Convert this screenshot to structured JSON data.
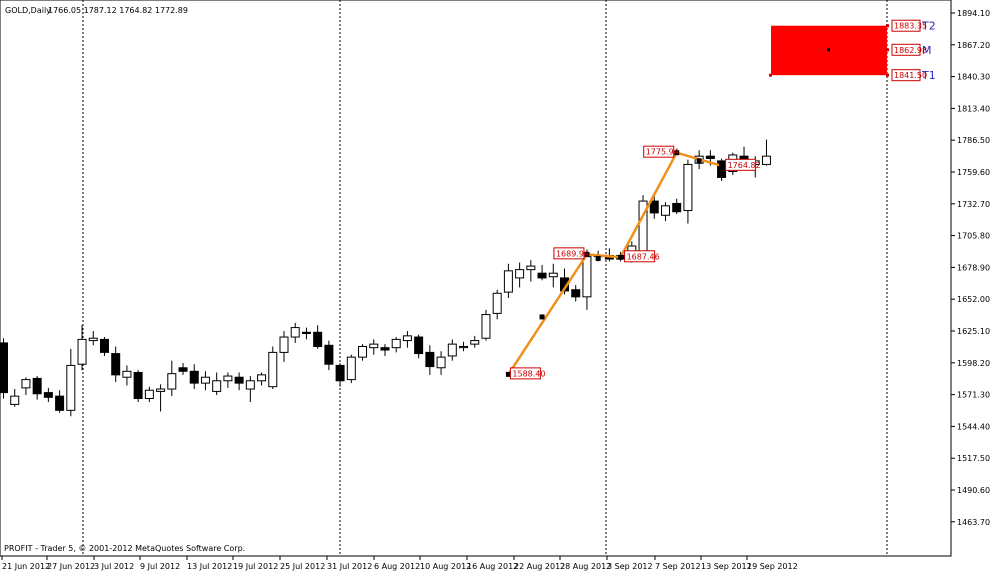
{
  "header": {
    "symbol": "GOLD,Daily",
    "ohlc": "1766.05 1787.12 1764.82 1772.89"
  },
  "footer": {
    "copyright": "PROFIT - Trader 5, © 2001-2012 MetaQuotes Software Corp."
  },
  "chart_data": {
    "type": "candlestick",
    "title": "",
    "ylim": [
      1436.78,
      1900.0
    ],
    "y_ticks": [
      1894.1,
      1867.2,
      1840.3,
      1813.4,
      1786.5,
      1759.6,
      1732.7,
      1705.8,
      1678.9,
      1652.0,
      1625.1,
      1598.2,
      1571.3,
      1544.4,
      1517.5,
      1490.6,
      1463.7
    ],
    "x_labels": [
      "21 Jun 2012",
      "27 Jun 2012",
      "3 Jul 2012",
      "9 Jul 2012",
      "13 Jul 2012",
      "19 Jul 2012",
      "25 Jul 2012",
      "31 Jul 2012",
      "6 Aug 2012",
      "10 Aug 2012",
      "16 Aug 2012",
      "22 Aug 2012",
      "28 Aug 2012",
      "3 Sep 2012",
      "7 Sep 2012",
      "13 Sep 2012",
      "19 Sep 2012"
    ],
    "candles": [
      {
        "o": 1615,
        "h": 1619,
        "l": 1568,
        "c": 1573
      },
      {
        "o": 1563,
        "h": 1576,
        "l": 1561,
        "c": 1570
      },
      {
        "o": 1577,
        "h": 1586,
        "l": 1571,
        "c": 1584
      },
      {
        "o": 1585,
        "h": 1587,
        "l": 1567,
        "c": 1572
      },
      {
        "o": 1573,
        "h": 1577,
        "l": 1565,
        "c": 1569
      },
      {
        "o": 1570,
        "h": 1575,
        "l": 1556,
        "c": 1558
      },
      {
        "o": 1558,
        "h": 1610,
        "l": 1553,
        "c": 1596
      },
      {
        "o": 1597,
        "h": 1630,
        "l": 1592,
        "c": 1618
      },
      {
        "o": 1617,
        "h": 1625,
        "l": 1613,
        "c": 1619
      },
      {
        "o": 1618,
        "h": 1620,
        "l": 1604,
        "c": 1607
      },
      {
        "o": 1606,
        "h": 1612,
        "l": 1582,
        "c": 1588
      },
      {
        "o": 1586,
        "h": 1596,
        "l": 1579,
        "c": 1591
      },
      {
        "o": 1590,
        "h": 1592,
        "l": 1565,
        "c": 1568
      },
      {
        "o": 1568,
        "h": 1578,
        "l": 1565,
        "c": 1575
      },
      {
        "o": 1574,
        "h": 1580,
        "l": 1557,
        "c": 1576
      },
      {
        "o": 1576,
        "h": 1600,
        "l": 1570,
        "c": 1589
      },
      {
        "o": 1594,
        "h": 1598,
        "l": 1588,
        "c": 1591
      },
      {
        "o": 1591,
        "h": 1597,
        "l": 1576,
        "c": 1581
      },
      {
        "o": 1581,
        "h": 1591,
        "l": 1575,
        "c": 1586
      },
      {
        "o": 1574,
        "h": 1590,
        "l": 1571,
        "c": 1583
      },
      {
        "o": 1583,
        "h": 1590,
        "l": 1577,
        "c": 1587
      },
      {
        "o": 1586,
        "h": 1590,
        "l": 1575,
        "c": 1581
      },
      {
        "o": 1576,
        "h": 1587,
        "l": 1565,
        "c": 1583
      },
      {
        "o": 1583,
        "h": 1590,
        "l": 1579,
        "c": 1588
      },
      {
        "o": 1578,
        "h": 1612,
        "l": 1576,
        "c": 1607
      },
      {
        "o": 1607,
        "h": 1625,
        "l": 1599,
        "c": 1620
      },
      {
        "o": 1620,
        "h": 1632,
        "l": 1615,
        "c": 1628
      },
      {
        "o": 1624,
        "h": 1628,
        "l": 1618,
        "c": 1623
      },
      {
        "o": 1624,
        "h": 1630,
        "l": 1610,
        "c": 1612
      },
      {
        "o": 1613,
        "h": 1617,
        "l": 1592,
        "c": 1597
      },
      {
        "o": 1596,
        "h": 1598,
        "l": 1578,
        "c": 1583
      },
      {
        "o": 1584,
        "h": 1605,
        "l": 1581,
        "c": 1603
      },
      {
        "o": 1603,
        "h": 1614,
        "l": 1600,
        "c": 1612
      },
      {
        "o": 1611,
        "h": 1618,
        "l": 1605,
        "c": 1614
      },
      {
        "o": 1611,
        "h": 1614,
        "l": 1604,
        "c": 1609
      },
      {
        "o": 1611,
        "h": 1620,
        "l": 1607,
        "c": 1618
      },
      {
        "o": 1617,
        "h": 1625,
        "l": 1611,
        "c": 1621
      },
      {
        "o": 1620,
        "h": 1622,
        "l": 1602,
        "c": 1606
      },
      {
        "o": 1607,
        "h": 1613,
        "l": 1588,
        "c": 1595
      },
      {
        "o": 1594,
        "h": 1608,
        "l": 1588,
        "c": 1603
      },
      {
        "o": 1604,
        "h": 1618,
        "l": 1600,
        "c": 1614
      },
      {
        "o": 1611,
        "h": 1616,
        "l": 1608,
        "c": 1612
      },
      {
        "o": 1614,
        "h": 1621,
        "l": 1611,
        "c": 1617
      },
      {
        "o": 1619,
        "h": 1643,
        "l": 1617,
        "c": 1639
      },
      {
        "o": 1640,
        "h": 1660,
        "l": 1635,
        "c": 1657
      },
      {
        "o": 1658,
        "h": 1682,
        "l": 1653,
        "c": 1676
      },
      {
        "o": 1670,
        "h": 1683,
        "l": 1662,
        "c": 1677
      },
      {
        "o": 1677,
        "h": 1685,
        "l": 1667,
        "c": 1680
      },
      {
        "o": 1674,
        "h": 1681,
        "l": 1668,
        "c": 1670
      },
      {
        "o": 1671,
        "h": 1682,
        "l": 1662,
        "c": 1674
      },
      {
        "o": 1670,
        "h": 1678,
        "l": 1656,
        "c": 1659
      },
      {
        "o": 1660,
        "h": 1664,
        "l": 1650,
        "c": 1654
      },
      {
        "o": 1654,
        "h": 1694,
        "l": 1643,
        "c": 1688
      },
      {
        "o": 1688,
        "h": 1693,
        "l": 1684,
        "c": 1689
      },
      {
        "o": 1689,
        "h": 1695,
        "l": 1684,
        "c": 1686
      },
      {
        "o": 1689,
        "h": 1692,
        "l": 1684,
        "c": 1686
      },
      {
        "o": 1686,
        "h": 1701,
        "l": 1683,
        "c": 1697
      },
      {
        "o": 1688,
        "h": 1740,
        "l": 1686,
        "c": 1735
      },
      {
        "o": 1735,
        "h": 1742,
        "l": 1720,
        "c": 1725
      },
      {
        "o": 1723,
        "h": 1734,
        "l": 1718,
        "c": 1731
      },
      {
        "o": 1733,
        "h": 1737,
        "l": 1724,
        "c": 1726
      },
      {
        "o": 1727,
        "h": 1770,
        "l": 1716,
        "c": 1766
      },
      {
        "o": 1767,
        "h": 1778,
        "l": 1762,
        "c": 1773
      },
      {
        "o": 1773,
        "h": 1778,
        "l": 1765,
        "c": 1771
      },
      {
        "o": 1769,
        "h": 1771,
        "l": 1752,
        "c": 1755
      },
      {
        "o": 1760,
        "h": 1776,
        "l": 1757,
        "c": 1774
      },
      {
        "o": 1773,
        "h": 1781,
        "l": 1765,
        "c": 1767
      },
      {
        "o": 1766,
        "h": 1773,
        "l": 1755,
        "c": 1769
      },
      {
        "o": 1766,
        "h": 1787,
        "l": 1765,
        "c": 1773
      }
    ],
    "wave": {
      "points": [
        {
          "i": 45,
          "v": 1588.4
        },
        {
          "i": 52,
          "v": 1689.94
        },
        {
          "i": 55,
          "v": 1687.46
        },
        {
          "i": 60,
          "v": 1775.94
        },
        {
          "i": 64,
          "v": 1764.82
        }
      ],
      "extra_markers": [
        {
          "i": 48,
          "v": 1637.0
        },
        {
          "i": 53,
          "v": 1686.5
        },
        {
          "i": 58,
          "v": 1731.0
        },
        {
          "i": 62,
          "v": 1769.0
        }
      ],
      "labels": [
        "1588.40",
        "1689.94",
        "1687.46",
        "1775.94",
        "1764.82"
      ]
    },
    "targets": [
      {
        "name": "T2",
        "value": 1883.35,
        "label": "1883.35"
      },
      {
        "name": "M",
        "value": 1862.98,
        "label": "1862.98"
      },
      {
        "name": "T1",
        "value": 1841.5,
        "label": "1841.50"
      }
    ],
    "target_box": {
      "top": 1883.35,
      "bottom": 1841.5,
      "color": "#ff0000"
    },
    "colors": {
      "wave": "#f0901a",
      "label_text": "#cc0000",
      "target_names": "#2a2ab8",
      "bear_body": "#000000",
      "bull_body": "#ffffff"
    }
  }
}
